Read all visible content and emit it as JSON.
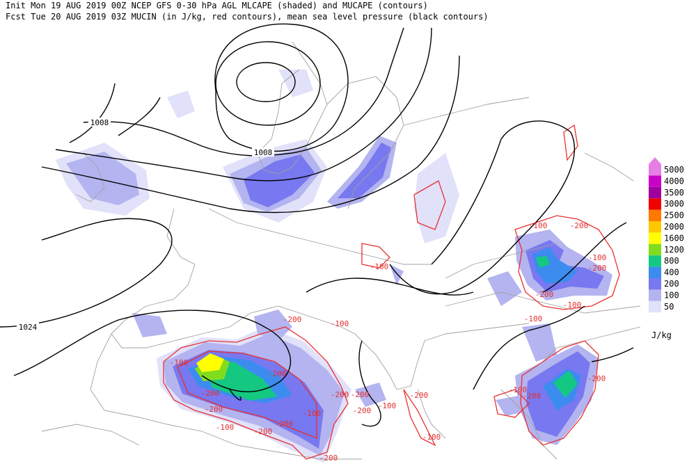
{
  "header": {
    "line1": "Init  Mon 19 AUG 2019 00Z  NCEP GFS 0-30 hPa AGL MLCAPE (shaded) and MUCAPE (contours)",
    "line2": "Fcst Tue 20 AUG 2019 03Z  MUCIN (in J/kg, red contours), mean sea level pressure (black contours)"
  },
  "legend": {
    "levels": [
      {
        "label": "5000",
        "color": "#e67ee6"
      },
      {
        "label": "4000",
        "color": "#c800c8"
      },
      {
        "label": "3500",
        "color": "#a000a0"
      },
      {
        "label": "3000",
        "color": "#f00000"
      },
      {
        "label": "2500",
        "color": "#ff7800"
      },
      {
        "label": "2000",
        "color": "#ffc800"
      },
      {
        "label": "1600",
        "color": "#ffff00"
      },
      {
        "label": "1200",
        "color": "#82dc1e"
      },
      {
        "label": "800",
        "color": "#14c882"
      },
      {
        "label": "400",
        "color": "#3c8cf0"
      },
      {
        "label": "200",
        "color": "#7878f0"
      },
      {
        "label": "100",
        "color": "#b4b4f0"
      },
      {
        "label": "50",
        "color": "#e1e1fa"
      }
    ],
    "unit": "J/kg"
  },
  "isobar_labels": [
    "1008",
    "1008",
    "1024"
  ],
  "cin_labels": [
    "-100",
    "-100",
    "-200",
    "-100",
    "-200",
    "-200",
    "-200",
    "-100",
    "-200",
    "-200",
    "-100",
    "-200",
    "-200",
    "-200",
    "-200",
    "-100",
    "-200",
    "-100",
    "-100",
    "-200",
    "-100",
    "-200",
    "-200",
    "-100",
    "-100",
    "-100",
    "-200",
    "-200"
  ]
}
